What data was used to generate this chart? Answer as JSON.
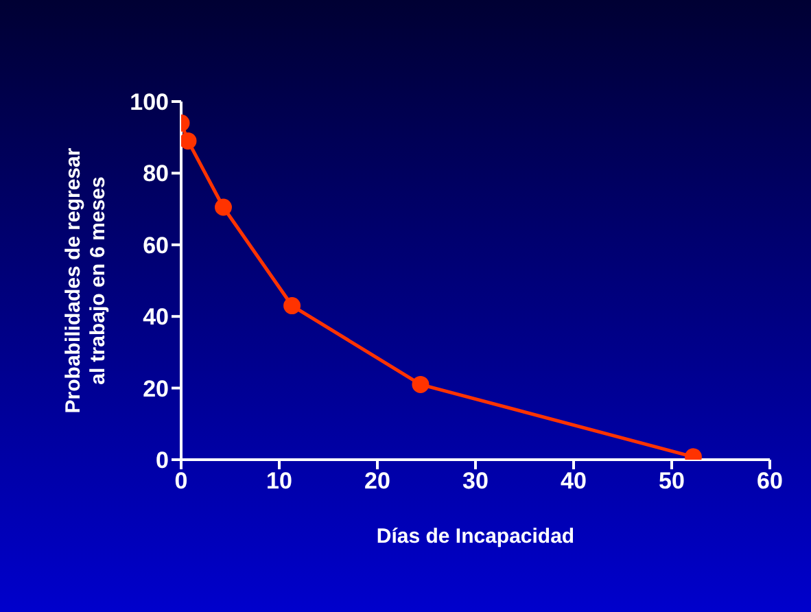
{
  "chart_data": {
    "type": "line",
    "xlabel": "Días de Incapacidad",
    "ylabel": "Probabilidades de regresar\nal trabajo en 6 meses",
    "x": [
      0,
      0.7,
      4.3,
      11.3,
      24.4,
      52.2
    ],
    "series": [
      {
        "color": "#ff3300",
        "values": [
          94,
          89,
          70.5,
          43,
          21,
          0.8
        ]
      }
    ],
    "xlim": [
      0,
      60
    ],
    "xticks": [
      0,
      10,
      20,
      30,
      40,
      50,
      60
    ],
    "ylim": [
      0,
      100
    ],
    "yticks": [
      0,
      20,
      40,
      60,
      80,
      100
    ],
    "marker": "circle",
    "line_style": "solid",
    "grid": false,
    "legend": false
  }
}
